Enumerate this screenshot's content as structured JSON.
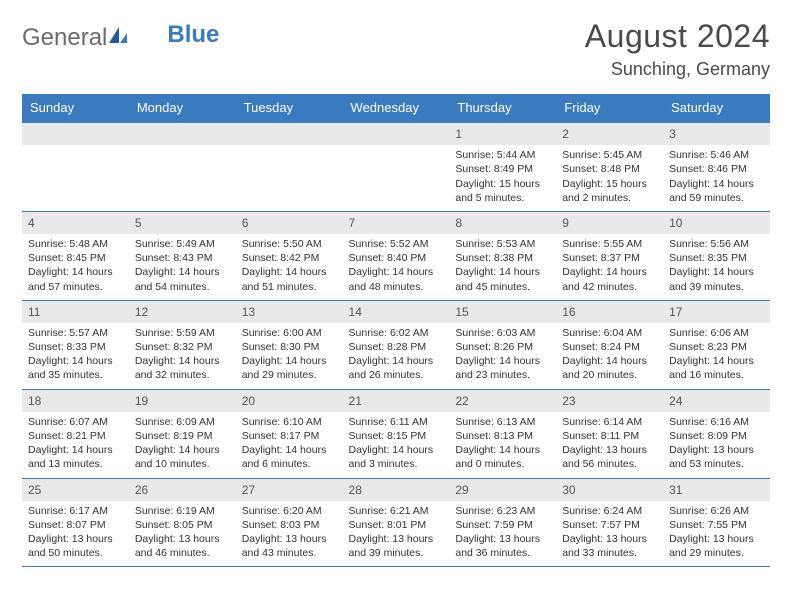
{
  "logo": {
    "general": "General",
    "blue": "Blue"
  },
  "title": "August 2024",
  "location": "Sunching, Germany",
  "colors": {
    "header_bg": "#3a7bbf",
    "header_text": "#ffffff",
    "daynum_bg": "#e9e9e9",
    "cell_border": "#3a7bbf",
    "text": "#333333",
    "logo_gray": "#6b6b6b",
    "logo_blue": "#3a7bbf",
    "title_color": "#4a4a4a",
    "bg": "#ffffff"
  },
  "day_names": [
    "Sunday",
    "Monday",
    "Tuesday",
    "Wednesday",
    "Thursday",
    "Friday",
    "Saturday"
  ],
  "calendar": {
    "first_day_index": 4,
    "days": [
      {
        "n": 1,
        "sr": "5:44 AM",
        "ss": "8:49 PM",
        "dl": "15 hours and 5 minutes."
      },
      {
        "n": 2,
        "sr": "5:45 AM",
        "ss": "8:48 PM",
        "dl": "15 hours and 2 minutes."
      },
      {
        "n": 3,
        "sr": "5:46 AM",
        "ss": "8:46 PM",
        "dl": "14 hours and 59 minutes."
      },
      {
        "n": 4,
        "sr": "5:48 AM",
        "ss": "8:45 PM",
        "dl": "14 hours and 57 minutes."
      },
      {
        "n": 5,
        "sr": "5:49 AM",
        "ss": "8:43 PM",
        "dl": "14 hours and 54 minutes."
      },
      {
        "n": 6,
        "sr": "5:50 AM",
        "ss": "8:42 PM",
        "dl": "14 hours and 51 minutes."
      },
      {
        "n": 7,
        "sr": "5:52 AM",
        "ss": "8:40 PM",
        "dl": "14 hours and 48 minutes."
      },
      {
        "n": 8,
        "sr": "5:53 AM",
        "ss": "8:38 PM",
        "dl": "14 hours and 45 minutes."
      },
      {
        "n": 9,
        "sr": "5:55 AM",
        "ss": "8:37 PM",
        "dl": "14 hours and 42 minutes."
      },
      {
        "n": 10,
        "sr": "5:56 AM",
        "ss": "8:35 PM",
        "dl": "14 hours and 39 minutes."
      },
      {
        "n": 11,
        "sr": "5:57 AM",
        "ss": "8:33 PM",
        "dl": "14 hours and 35 minutes."
      },
      {
        "n": 12,
        "sr": "5:59 AM",
        "ss": "8:32 PM",
        "dl": "14 hours and 32 minutes."
      },
      {
        "n": 13,
        "sr": "6:00 AM",
        "ss": "8:30 PM",
        "dl": "14 hours and 29 minutes."
      },
      {
        "n": 14,
        "sr": "6:02 AM",
        "ss": "8:28 PM",
        "dl": "14 hours and 26 minutes."
      },
      {
        "n": 15,
        "sr": "6:03 AM",
        "ss": "8:26 PM",
        "dl": "14 hours and 23 minutes."
      },
      {
        "n": 16,
        "sr": "6:04 AM",
        "ss": "8:24 PM",
        "dl": "14 hours and 20 minutes."
      },
      {
        "n": 17,
        "sr": "6:06 AM",
        "ss": "8:23 PM",
        "dl": "14 hours and 16 minutes."
      },
      {
        "n": 18,
        "sr": "6:07 AM",
        "ss": "8:21 PM",
        "dl": "14 hours and 13 minutes."
      },
      {
        "n": 19,
        "sr": "6:09 AM",
        "ss": "8:19 PM",
        "dl": "14 hours and 10 minutes."
      },
      {
        "n": 20,
        "sr": "6:10 AM",
        "ss": "8:17 PM",
        "dl": "14 hours and 6 minutes."
      },
      {
        "n": 21,
        "sr": "6:11 AM",
        "ss": "8:15 PM",
        "dl": "14 hours and 3 minutes."
      },
      {
        "n": 22,
        "sr": "6:13 AM",
        "ss": "8:13 PM",
        "dl": "14 hours and 0 minutes."
      },
      {
        "n": 23,
        "sr": "6:14 AM",
        "ss": "8:11 PM",
        "dl": "13 hours and 56 minutes."
      },
      {
        "n": 24,
        "sr": "6:16 AM",
        "ss": "8:09 PM",
        "dl": "13 hours and 53 minutes."
      },
      {
        "n": 25,
        "sr": "6:17 AM",
        "ss": "8:07 PM",
        "dl": "13 hours and 50 minutes."
      },
      {
        "n": 26,
        "sr": "6:19 AM",
        "ss": "8:05 PM",
        "dl": "13 hours and 46 minutes."
      },
      {
        "n": 27,
        "sr": "6:20 AM",
        "ss": "8:03 PM",
        "dl": "13 hours and 43 minutes."
      },
      {
        "n": 28,
        "sr": "6:21 AM",
        "ss": "8:01 PM",
        "dl": "13 hours and 39 minutes."
      },
      {
        "n": 29,
        "sr": "6:23 AM",
        "ss": "7:59 PM",
        "dl": "13 hours and 36 minutes."
      },
      {
        "n": 30,
        "sr": "6:24 AM",
        "ss": "7:57 PM",
        "dl": "13 hours and 33 minutes."
      },
      {
        "n": 31,
        "sr": "6:26 AM",
        "ss": "7:55 PM",
        "dl": "13 hours and 29 minutes."
      }
    ]
  },
  "labels": {
    "sunrise": "Sunrise:",
    "sunset": "Sunset:",
    "daylight": "Daylight:"
  }
}
